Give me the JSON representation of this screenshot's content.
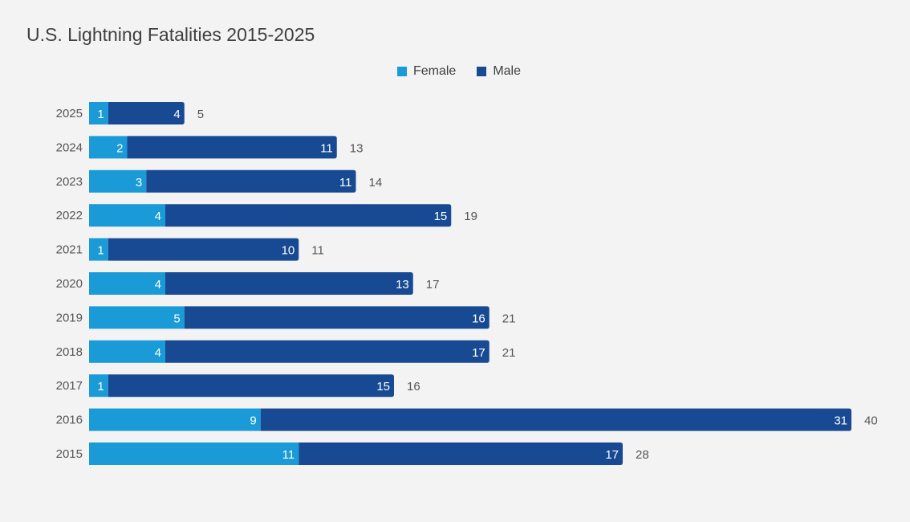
{
  "chart_data": {
    "type": "bar",
    "orientation": "horizontal",
    "stacked": true,
    "title": "U.S. Lightning Fatalities 2015-2025",
    "xlabel": "",
    "ylabel": "",
    "xlim": [
      0,
      40
    ],
    "grid": false,
    "legend_position": "top-center",
    "categories": [
      "2025",
      "2024",
      "2023",
      "2022",
      "2021",
      "2020",
      "2019",
      "2018",
      "2017",
      "2016",
      "2015"
    ],
    "series": [
      {
        "name": "Female",
        "color": "#1a9bd8",
        "values": [
          1,
          2,
          3,
          4,
          1,
          4,
          5,
          4,
          1,
          9,
          11
        ]
      },
      {
        "name": "Male",
        "color": "#174a93",
        "values": [
          4,
          11,
          11,
          15,
          10,
          13,
          16,
          17,
          15,
          31,
          17
        ]
      }
    ],
    "totals": [
      5,
      13,
      14,
      19,
      11,
      17,
      21,
      21,
      16,
      40,
      28
    ]
  }
}
